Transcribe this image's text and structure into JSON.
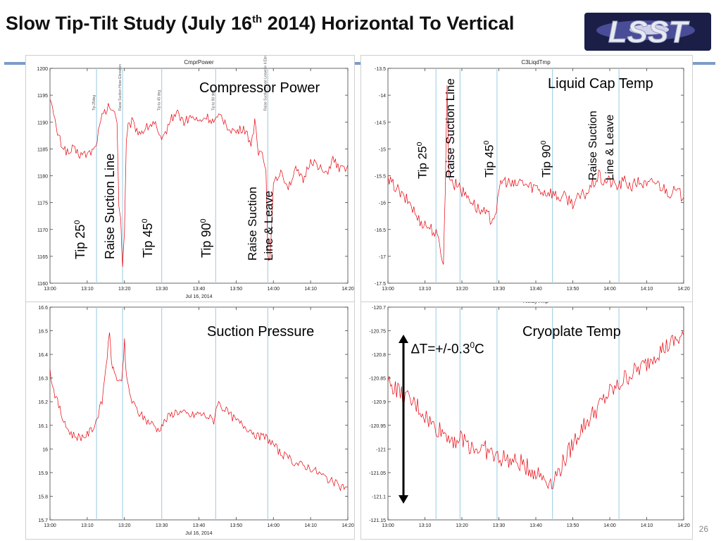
{
  "slide": {
    "title_prefix": "Slow Tip-Tilt Study (July 16",
    "title_sup": "th",
    "title_suffix": " 2014) Horizontal To Vertical",
    "logo_text": "LSST",
    "page_number": "26"
  },
  "colors": {
    "series": "#e8000b",
    "marker": "#a8d3e6",
    "rule": "#4f7bb5",
    "arrow": "#000000"
  },
  "chart_data": [
    {
      "id": "compressor",
      "type": "line",
      "title": "CmprPower",
      "overlay_label": "Compressor Power",
      "xlabel": "Jul 16, 2014",
      "ylabel": "",
      "x_ticks": [
        "13:00",
        "13:10",
        "13:20",
        "13:30",
        "13:40",
        "13:50",
        "14:00",
        "14:10",
        "14:20"
      ],
      "xlim": [
        0,
        80
      ],
      "ylim": [
        1160,
        1200
      ],
      "y_ticks": [
        "1160",
        "1165",
        "1170",
        "1175",
        "1180",
        "1185",
        "1190",
        "1195",
        "1200"
      ],
      "markers": [
        12.5,
        19.5,
        30,
        44.5,
        58.5
      ],
      "tiny_annotations": [
        "Tip 25deg",
        "Raise Suction Hose Elevation",
        "Tip to 45 deg",
        "Tip to 90 deg",
        "Raise Suction Hose Leave in it Elevated"
      ],
      "series": [
        {
          "values": [
            [
              0,
              1195
            ],
            [
              1,
              1191
            ],
            [
              2,
              1188
            ],
            [
              3,
              1186
            ],
            [
              4,
              1185
            ],
            [
              5,
              1184
            ],
            [
              6,
              1185
            ],
            [
              8,
              1184
            ],
            [
              10,
              1184
            ],
            [
              12,
              1185
            ],
            [
              13,
              1188
            ],
            [
              14,
              1191
            ],
            [
              15,
              1192
            ],
            [
              16,
              1193
            ],
            [
              17,
              1192
            ],
            [
              18,
              1190
            ],
            [
              18.5,
              1175
            ],
            [
              19,
              1172
            ],
            [
              19.5,
              1163
            ],
            [
              20,
              1170
            ],
            [
              20.5,
              1186
            ],
            [
              21,
              1189
            ],
            [
              22,
              1190
            ],
            [
              24,
              1188
            ],
            [
              26,
              1189
            ],
            [
              28,
              1190
            ],
            [
              29,
              1188
            ],
            [
              30,
              1186
            ],
            [
              31,
              1188
            ],
            [
              32,
              1190
            ],
            [
              34,
              1192
            ],
            [
              36,
              1190
            ],
            [
              38,
              1191
            ],
            [
              40,
              1190
            ],
            [
              42,
              1191
            ],
            [
              44,
              1190
            ],
            [
              46,
              1191
            ],
            [
              48,
              1189
            ],
            [
              50,
              1188
            ],
            [
              52,
              1189
            ],
            [
              54,
              1186
            ],
            [
              55,
              1190
            ],
            [
              56,
              1184
            ],
            [
              57,
              1185
            ],
            [
              58,
              1181
            ],
            [
              58.5,
              1166
            ],
            [
              59,
              1164
            ],
            [
              60,
              1178
            ],
            [
              62,
              1181
            ],
            [
              64,
              1178
            ],
            [
              66,
              1181
            ],
            [
              68,
              1179
            ],
            [
              70,
              1183
            ],
            [
              72,
              1182
            ],
            [
              74,
              1180
            ],
            [
              76,
              1183
            ],
            [
              78,
              1181
            ],
            [
              80,
              1182
            ]
          ]
        }
      ]
    },
    {
      "id": "liquid",
      "type": "line",
      "title": "C3LiqdTmp",
      "overlay_label": "Liquid Cap  Temp",
      "xlabel": "",
      "ylabel": "",
      "x_ticks": [
        "13:00",
        "13:10",
        "13:20",
        "13:30",
        "13:40",
        "13:50",
        "14:00",
        "14:10",
        "14:20"
      ],
      "xlim": [
        0,
        80
      ],
      "ylim": [
        -17.5,
        -13.5
      ],
      "y_ticks": [
        "-17.5",
        "-17",
        "-16.5",
        "-16",
        "-15.5",
        "-15",
        "-14.5",
        "-14",
        "-13.5"
      ],
      "markers": [
        13,
        19.5,
        29.5,
        44.5,
        62.5
      ],
      "series": [
        {
          "values": [
            [
              0,
              -15.6
            ],
            [
              2,
              -15.7
            ],
            [
              4,
              -15.9
            ],
            [
              6,
              -16
            ],
            [
              8,
              -16.3
            ],
            [
              10,
              -16.4
            ],
            [
              12,
              -16.5
            ],
            [
              13,
              -16.6
            ],
            [
              14,
              -16.8
            ],
            [
              15,
              -17.1
            ],
            [
              15.5,
              -15.8
            ],
            [
              16,
              -13.7
            ],
            [
              16.5,
              -15.6
            ],
            [
              17,
              -15.5
            ],
            [
              18,
              -15.7
            ],
            [
              19,
              -15.6
            ],
            [
              20,
              -15.8
            ],
            [
              22,
              -15.9
            ],
            [
              24,
              -16.1
            ],
            [
              26,
              -16.2
            ],
            [
              28,
              -16.3
            ],
            [
              29,
              -16.2
            ],
            [
              30,
              -15.9
            ],
            [
              30.5,
              -15.6
            ],
            [
              32,
              -15.6
            ],
            [
              34,
              -15.7
            ],
            [
              36,
              -15.6
            ],
            [
              38,
              -15.7
            ],
            [
              40,
              -15.7
            ],
            [
              42,
              -15.8
            ],
            [
              44,
              -15.8
            ],
            [
              46,
              -15.9
            ],
            [
              48,
              -15.9
            ],
            [
              50,
              -16
            ],
            [
              52,
              -15.9
            ],
            [
              54,
              -15.8
            ],
            [
              55,
              -15.7
            ],
            [
              56,
              -15.6
            ],
            [
              57,
              -15.5
            ],
            [
              58,
              -15.6
            ],
            [
              60,
              -15.6
            ],
            [
              62,
              -15.7
            ],
            [
              64,
              -15.6
            ],
            [
              66,
              -15.7
            ],
            [
              68,
              -15.6
            ],
            [
              70,
              -15.7
            ],
            [
              72,
              -15.6
            ],
            [
              74,
              -15.7
            ],
            [
              76,
              -15.8
            ],
            [
              78,
              -15.8
            ],
            [
              80,
              -15.9
            ]
          ]
        }
      ]
    },
    {
      "id": "suction",
      "type": "line",
      "title": "",
      "overlay_label": "Suction Pressure",
      "xlabel": "Jul 16, 2014",
      "ylabel": "",
      "x_ticks": [
        "13:00",
        "13:10",
        "13:20",
        "13:30",
        "13:40",
        "13:50",
        "14:00",
        "14:10",
        "14:20"
      ],
      "xlim": [
        0,
        80
      ],
      "ylim": [
        15.7,
        16.6
      ],
      "y_ticks": [
        "15.7",
        "15.8",
        "15.9",
        "16",
        "16.1",
        "16.2",
        "16.3",
        "16.4",
        "16.5",
        "16.6"
      ],
      "markers": [
        12.5,
        19.5,
        30,
        44.5,
        58.5
      ],
      "series": [
        {
          "values": [
            [
              0,
              16.33
            ],
            [
              1,
              16.25
            ],
            [
              2,
              16.2
            ],
            [
              3,
              16.15
            ],
            [
              4,
              16.1
            ],
            [
              6,
              16.06
            ],
            [
              8,
              16.05
            ],
            [
              10,
              16.06
            ],
            [
              12,
              16.1
            ],
            [
              13,
              16.15
            ],
            [
              14,
              16.2
            ],
            [
              15,
              16.35
            ],
            [
              16,
              16.48
            ],
            [
              16.5,
              16.38
            ],
            [
              17,
              16.33
            ],
            [
              18,
              16.3
            ],
            [
              19,
              16.28
            ],
            [
              19.5,
              16.33
            ],
            [
              20,
              16.45
            ],
            [
              20.5,
              16.3
            ],
            [
              22,
              16.2
            ],
            [
              24,
              16.15
            ],
            [
              26,
              16.12
            ],
            [
              28,
              16.1
            ],
            [
              29,
              16.08
            ],
            [
              30,
              16.1
            ],
            [
              32,
              16.14
            ],
            [
              34,
              16.16
            ],
            [
              36,
              16.15
            ],
            [
              38,
              16.14
            ],
            [
              40,
              16.15
            ],
            [
              42,
              16.14
            ],
            [
              44,
              16.12
            ],
            [
              45,
              16.2
            ],
            [
              46,
              16.18
            ],
            [
              48,
              16.15
            ],
            [
              50,
              16.12
            ],
            [
              52,
              16.1
            ],
            [
              54,
              16.08
            ],
            [
              56,
              16.05
            ],
            [
              58,
              16.05
            ],
            [
              60,
              16.02
            ],
            [
              62,
              15.98
            ],
            [
              64,
              15.96
            ],
            [
              66,
              15.94
            ],
            [
              68,
              15.93
            ],
            [
              70,
              15.92
            ],
            [
              72,
              15.9
            ],
            [
              74,
              15.88
            ],
            [
              76,
              15.86
            ],
            [
              78,
              15.84
            ],
            [
              80,
              15.84
            ]
          ]
        }
      ]
    },
    {
      "id": "relay",
      "type": "line",
      "title": "RelayTmp",
      "overlay_label": "Cryoplate Temp",
      "delta_label_prefix": "∆T=+/-0.3",
      "delta_label_sup": "0",
      "delta_label_suffix": "C",
      "xlabel": "",
      "ylabel": "",
      "x_ticks": [
        "13:00",
        "13:10",
        "13:20",
        "13:30",
        "13:40",
        "13:50",
        "14:00",
        "14:10",
        "14:20"
      ],
      "xlim": [
        0,
        80
      ],
      "ylim": [
        -121.15,
        -120.7
      ],
      "y_ticks": [
        "-121.15",
        "-121.1",
        "-121.05",
        "-121",
        "-120.95",
        "-120.9",
        "-120.85",
        "-120.8",
        "-120.75",
        "-120.7"
      ],
      "markers": [
        13,
        19.5,
        29.5,
        44.5,
        62.5
      ],
      "series": [
        {
          "values": [
            [
              0,
              -120.86
            ],
            [
              2,
              -120.87
            ],
            [
              4,
              -120.89
            ],
            [
              6,
              -120.9
            ],
            [
              8,
              -120.91
            ],
            [
              10,
              -120.93
            ],
            [
              12,
              -120.95
            ],
            [
              14,
              -120.96
            ],
            [
              16,
              -120.97
            ],
            [
              18,
              -120.98
            ],
            [
              20,
              -120.98
            ],
            [
              22,
              -120.99
            ],
            [
              24,
              -121
            ],
            [
              26,
              -121
            ],
            [
              28,
              -121.01
            ],
            [
              30,
              -121.02
            ],
            [
              32,
              -121.02
            ],
            [
              34,
              -121.03
            ],
            [
              36,
              -121.03
            ],
            [
              38,
              -121.04
            ],
            [
              40,
              -121.05
            ],
            [
              42,
              -121.06
            ],
            [
              44,
              -121.07
            ],
            [
              45,
              -121.06
            ],
            [
              46,
              -121.05
            ],
            [
              48,
              -121.02
            ],
            [
              50,
              -120.99
            ],
            [
              52,
              -120.96
            ],
            [
              54,
              -120.94
            ],
            [
              56,
              -120.92
            ],
            [
              58,
              -120.9
            ],
            [
              60,
              -120.88
            ],
            [
              62,
              -120.87
            ],
            [
              64,
              -120.85
            ],
            [
              66,
              -120.84
            ],
            [
              68,
              -120.83
            ],
            [
              70,
              -120.82
            ],
            [
              72,
              -120.8
            ],
            [
              74,
              -120.79
            ],
            [
              76,
              -120.78
            ],
            [
              78,
              -120.77
            ],
            [
              80,
              -120.76
            ]
          ]
        }
      ]
    }
  ],
  "labels": {
    "tip25": "Tip 25",
    "raise_suction_line": "Raise Suction Line",
    "tip45": "Tip 45",
    "tip90": "Tip 90",
    "raise_suction": "Raise Suction",
    "line_and_leave": "Line & Leave",
    "degree": "0"
  }
}
